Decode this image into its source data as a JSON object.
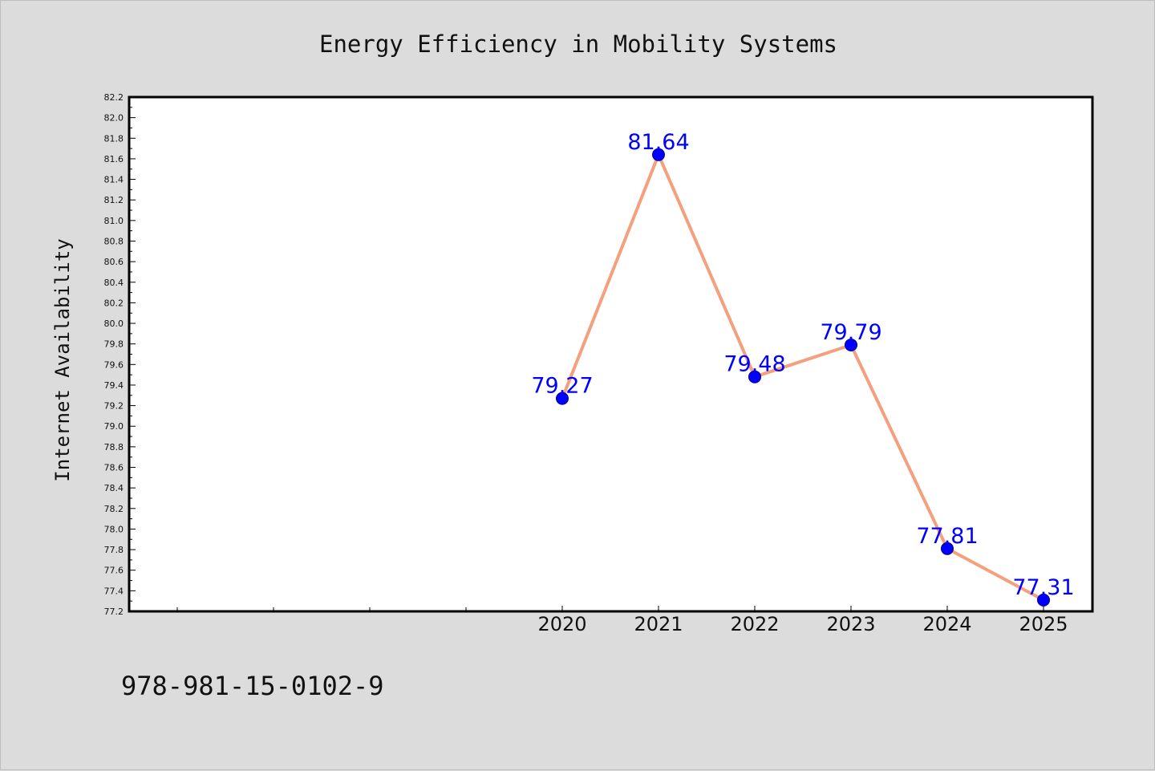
{
  "chart_data": {
    "type": "line",
    "title": "Energy Efficiency in Mobility Systems",
    "xlabel": "",
    "ylabel": "Internet Availability",
    "x": [
      "2020",
      "2021",
      "2022",
      "2023",
      "2024",
      "2025"
    ],
    "values": [
      79.27,
      81.64,
      79.48,
      79.79,
      77.81,
      77.31
    ],
    "data_labels": [
      "79.27",
      "81.64",
      "79.48",
      "79.79",
      "77.81",
      "77.31"
    ],
    "ylim": [
      77.2,
      82.2
    ],
    "yticks": [
      "77.2",
      "77.4",
      "77.6",
      "77.8",
      "78.0",
      "78.2",
      "78.4",
      "78.6",
      "78.8",
      "79.0",
      "79.2",
      "79.4",
      "79.6",
      "79.8",
      "80.0",
      "80.2",
      "80.4",
      "80.6",
      "80.8",
      "81.0",
      "81.2",
      "81.4",
      "81.6",
      "81.8",
      "82.0",
      "82.2"
    ],
    "grid": false,
    "line_color": "#f4a07e",
    "marker_color": "#0000ff",
    "label_color": "#0000ff",
    "background_color": "#dcdcdc",
    "plot_background": "#ffffff"
  },
  "footer_text": "978-981-15-0102-9"
}
